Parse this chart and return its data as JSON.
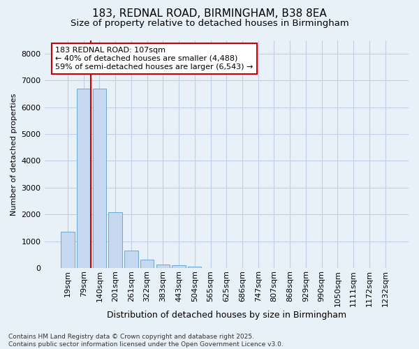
{
  "title1": "183, REDNAL ROAD, BIRMINGHAM, B38 8EA",
  "title2": "Size of property relative to detached houses in Birmingham",
  "xlabel": "Distribution of detached houses by size in Birmingham",
  "ylabel": "Number of detached properties",
  "categories": [
    "19sqm",
    "79sqm",
    "140sqm",
    "201sqm",
    "261sqm",
    "322sqm",
    "383sqm",
    "443sqm",
    "504sqm",
    "565sqm",
    "625sqm",
    "686sqm",
    "747sqm",
    "807sqm",
    "868sqm",
    "929sqm",
    "990sqm",
    "1050sqm",
    "1111sqm",
    "1172sqm",
    "1232sqm"
  ],
  "values": [
    1350,
    6680,
    6680,
    2080,
    650,
    320,
    130,
    100,
    50,
    10,
    5,
    0,
    0,
    0,
    0,
    0,
    0,
    0,
    0,
    0,
    0
  ],
  "bar_color": "#c5d8f0",
  "bar_edge_color": "#6aaad4",
  "vline_x": 1.45,
  "vline_color": "#cc0000",
  "annotation_text": "183 REDNAL ROAD: 107sqm\n← 40% of detached houses are smaller (4,488)\n59% of semi-detached houses are larger (6,543) →",
  "annotation_box_facecolor": "#ffffff",
  "annotation_box_edgecolor": "#cc0000",
  "bg_color": "#e8f0f8",
  "grid_color": "#c0d0e8",
  "footer": "Contains HM Land Registry data © Crown copyright and database right 2025.\nContains public sector information licensed under the Open Government Licence v3.0.",
  "ylim": [
    0,
    8500
  ],
  "yticks": [
    0,
    1000,
    2000,
    3000,
    4000,
    5000,
    6000,
    7000,
    8000
  ],
  "title1_fontsize": 11,
  "title2_fontsize": 9.5,
  "xlabel_fontsize": 9,
  "ylabel_fontsize": 8,
  "tick_fontsize": 8,
  "annot_fontsize": 8
}
